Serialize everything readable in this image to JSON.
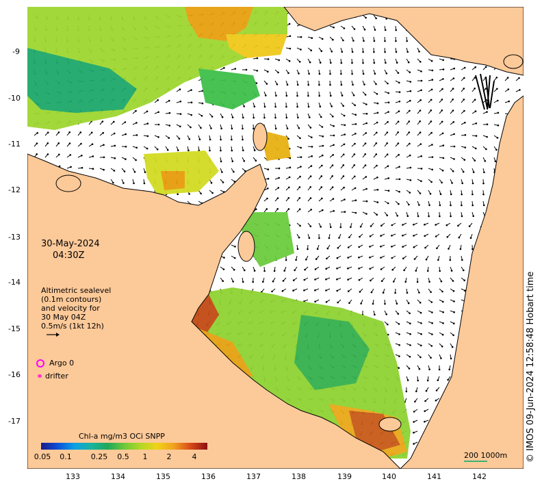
{
  "map": {
    "date_label": "30-May-2024",
    "time_label": "04:30Z",
    "legend_text": {
      "line1": "Altimetric sealevel",
      "line2": "(0.1m contours)",
      "line3": "and velocity for",
      "line4": "30 May 04Z",
      "line5": "0.5m/s (1kt 12h)"
    },
    "argo_label": "Argo 0",
    "drifter_label": "drifter",
    "copyright": "© IMOS 09-Jun-2024 12:58:48 Hobart time",
    "scale_label": "200 1000m",
    "colorbar_title": "Chl-a mg/m3 OCi SNPP",
    "colorbar_ticks": [
      "0.05",
      "0.1",
      "0.25",
      "0.5",
      "1",
      "2",
      "4"
    ],
    "x_ticks": [
      "133",
      "134",
      "135",
      "136",
      "137",
      "138",
      "139",
      "140",
      "141",
      "142"
    ],
    "y_ticks": [
      "-9",
      "-10",
      "-11",
      "-12",
      "-13",
      "-14",
      "-15",
      "-16",
      "-17"
    ],
    "colors": {
      "land": "#fcc999",
      "ocean": "#ffffff",
      "argo": "#ff00ff",
      "drifter": "#ff33cc",
      "scale_bar": "#3cb371"
    }
  }
}
